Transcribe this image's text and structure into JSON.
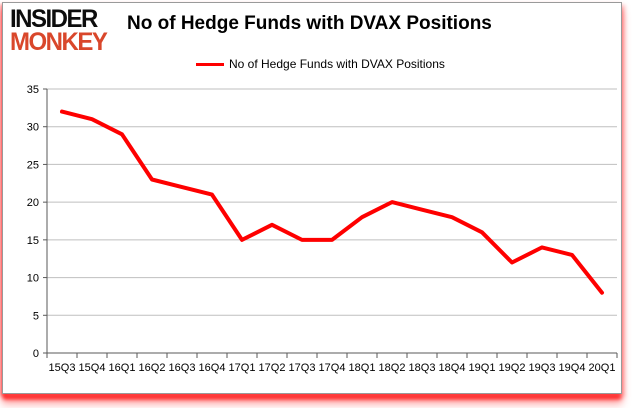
{
  "brand": {
    "line1": "INSIDER",
    "line2": "MONKEY",
    "line1_color": "#0d0d0d",
    "line2_color": "#d9472b"
  },
  "header": {
    "title": "No of Hedge Funds with DVAX Positions"
  },
  "legend": {
    "label": "No of Hedge Funds with DVAX Positions",
    "line_color": "#fe0000"
  },
  "chart_data": {
    "type": "line",
    "title": "No of Hedge Funds with DVAX Positions",
    "series_name": "No of Hedge Funds with DVAX Positions",
    "categories": [
      "15Q3",
      "15Q4",
      "16Q1",
      "16Q2",
      "16Q3",
      "16Q4",
      "17Q1",
      "17Q2",
      "17Q3",
      "17Q4",
      "18Q1",
      "18Q2",
      "18Q3",
      "18Q4",
      "19Q1",
      "19Q2",
      "19Q3",
      "19Q4",
      "20Q1"
    ],
    "values": [
      32,
      31,
      29,
      23,
      22,
      21,
      15,
      17,
      15,
      15,
      18,
      20,
      19,
      18,
      16,
      12,
      14,
      13,
      8
    ],
    "xlabel": "",
    "ylabel": "",
    "ylim": [
      0,
      35
    ],
    "ytick_step": 5,
    "grid": true,
    "legend_position": "top",
    "line_color": "#fe0000",
    "line_width": 4,
    "gridline_color": "#bfbfbf",
    "axis_color": "#595959",
    "tick_label_color": "#000000",
    "tick_font_size": 11
  }
}
